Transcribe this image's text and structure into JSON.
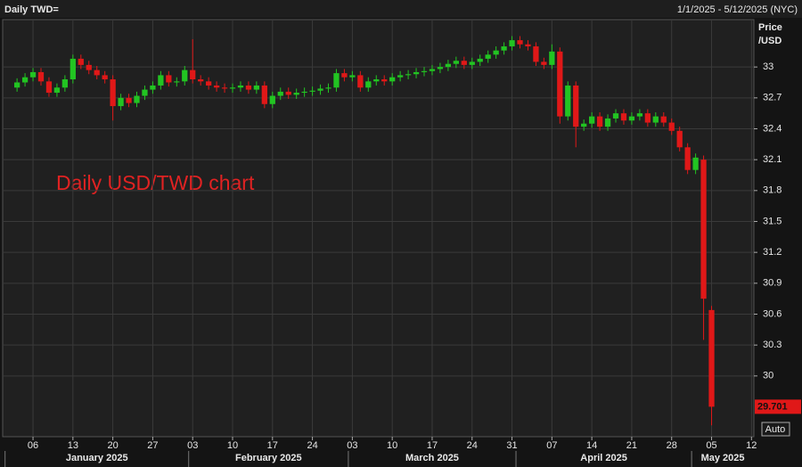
{
  "header": {
    "title": "Daily TWD=",
    "range": "1/1/2025 - 5/12/2025 (NYC)"
  },
  "controls": {
    "auto": "Auto"
  },
  "chart_data": {
    "type": "candlestick",
    "annotation": "Daily USD/TWD chart",
    "y_axis_label": [
      "Price",
      "/USD"
    ],
    "up_color": "#22c422",
    "down_color": "#e01818",
    "grid": true,
    "x": [
      "2025-01-02",
      "2025-01-03",
      "2025-01-06",
      "2025-01-07",
      "2025-01-08",
      "2025-01-09",
      "2025-01-10",
      "2025-01-13",
      "2025-01-14",
      "2025-01-15",
      "2025-01-16",
      "2025-01-17",
      "2025-01-20",
      "2025-01-21",
      "2025-01-22",
      "2025-01-23",
      "2025-01-24",
      "2025-01-27",
      "2025-01-28",
      "2025-01-29",
      "2025-01-30",
      "2025-01-31",
      "2025-02-03",
      "2025-02-04",
      "2025-02-05",
      "2025-02-06",
      "2025-02-07",
      "2025-02-10",
      "2025-02-11",
      "2025-02-12",
      "2025-02-13",
      "2025-02-14",
      "2025-02-17",
      "2025-02-18",
      "2025-02-19",
      "2025-02-20",
      "2025-02-21",
      "2025-02-24",
      "2025-02-25",
      "2025-02-26",
      "2025-02-27",
      "2025-02-28",
      "2025-03-03",
      "2025-03-04",
      "2025-03-05",
      "2025-03-06",
      "2025-03-07",
      "2025-03-10",
      "2025-03-11",
      "2025-03-12",
      "2025-03-13",
      "2025-03-14",
      "2025-03-17",
      "2025-03-18",
      "2025-03-19",
      "2025-03-20",
      "2025-03-21",
      "2025-03-24",
      "2025-03-25",
      "2025-03-26",
      "2025-03-27",
      "2025-03-28",
      "2025-03-31",
      "2025-04-01",
      "2025-04-02",
      "2025-04-03",
      "2025-04-04",
      "2025-04-07",
      "2025-04-08",
      "2025-04-09",
      "2025-04-10",
      "2025-04-11",
      "2025-04-14",
      "2025-04-15",
      "2025-04-16",
      "2025-04-17",
      "2025-04-18",
      "2025-04-21",
      "2025-04-22",
      "2025-04-23",
      "2025-04-24",
      "2025-04-25",
      "2025-04-28",
      "2025-04-29",
      "2025-04-30",
      "2025-05-01",
      "2025-05-02",
      "2025-05-05"
    ],
    "open": [
      32.8,
      32.85,
      32.9,
      32.95,
      32.86,
      32.75,
      32.8,
      32.88,
      33.08,
      33.02,
      32.97,
      32.92,
      32.88,
      32.62,
      32.7,
      32.65,
      32.72,
      32.78,
      32.82,
      32.92,
      32.85,
      32.86,
      32.97,
      32.88,
      32.86,
      32.82,
      32.8,
      32.79,
      32.8,
      32.82,
      32.78,
      32.82,
      32.64,
      32.72,
      32.76,
      32.73,
      32.75,
      32.76,
      32.77,
      32.79,
      32.8,
      32.94,
      32.9,
      32.92,
      32.8,
      32.86,
      32.88,
      32.86,
      32.9,
      32.92,
      32.93,
      32.95,
      32.96,
      32.98,
      33.0,
      33.03,
      33.06,
      33.02,
      33.05,
      33.08,
      33.12,
      33.16,
      33.2,
      33.26,
      33.22,
      33.2,
      33.05,
      33.02,
      33.15,
      32.52,
      32.82,
      32.42,
      32.45,
      32.52,
      32.42,
      32.5,
      32.55,
      32.48,
      32.52,
      32.55,
      32.46,
      32.52,
      32.46,
      32.38,
      32.22,
      32.0,
      32.1,
      30.64
    ],
    "high": [
      32.89,
      32.94,
      32.99,
      32.99,
      32.9,
      32.84,
      32.92,
      33.12,
      33.12,
      33.06,
      33.01,
      32.96,
      32.92,
      32.74,
      32.74,
      32.76,
      32.82,
      32.86,
      32.96,
      32.96,
      32.9,
      33.01,
      33.27,
      32.92,
      32.9,
      32.86,
      32.84,
      32.84,
      32.86,
      32.86,
      32.86,
      32.86,
      32.76,
      32.8,
      32.8,
      32.79,
      32.8,
      32.81,
      32.83,
      32.84,
      32.98,
      32.98,
      32.96,
      32.96,
      32.9,
      32.92,
      32.92,
      32.94,
      32.96,
      32.97,
      32.99,
      33.0,
      33.02,
      33.04,
      33.07,
      33.1,
      33.1,
      33.09,
      33.12,
      33.16,
      33.2,
      33.24,
      33.3,
      33.3,
      33.26,
      33.24,
      33.09,
      33.22,
      33.19,
      32.86,
      32.86,
      32.49,
      32.56,
      32.56,
      32.54,
      32.59,
      32.59,
      32.56,
      32.59,
      32.59,
      32.56,
      32.56,
      32.5,
      32.42,
      32.26,
      32.16,
      32.14,
      30.68
    ],
    "low": [
      32.76,
      32.81,
      32.86,
      32.82,
      32.71,
      32.71,
      32.76,
      32.84,
      32.98,
      32.93,
      32.88,
      32.84,
      32.48,
      32.58,
      32.61,
      32.61,
      32.68,
      32.74,
      32.78,
      32.81,
      32.81,
      32.82,
      32.84,
      32.82,
      32.78,
      32.76,
      32.75,
      32.75,
      32.76,
      32.74,
      32.74,
      32.6,
      32.6,
      32.68,
      32.69,
      32.69,
      32.71,
      32.72,
      32.73,
      32.75,
      32.76,
      32.86,
      32.86,
      32.76,
      32.76,
      32.82,
      32.82,
      32.82,
      32.86,
      32.88,
      32.89,
      32.91,
      32.92,
      32.94,
      32.96,
      32.99,
      32.98,
      32.98,
      33.01,
      33.04,
      33.08,
      33.12,
      33.16,
      33.18,
      33.16,
      33.01,
      32.98,
      32.98,
      32.45,
      32.48,
      32.22,
      32.38,
      32.41,
      32.38,
      32.38,
      32.46,
      32.44,
      32.44,
      32.48,
      32.42,
      32.42,
      32.42,
      32.34,
      32.18,
      31.96,
      31.96,
      30.35,
      29.52
    ],
    "close": [
      32.85,
      32.9,
      32.95,
      32.86,
      32.75,
      32.8,
      32.88,
      33.08,
      33.02,
      32.97,
      32.92,
      32.88,
      32.62,
      32.7,
      32.65,
      32.72,
      32.78,
      32.82,
      32.92,
      32.85,
      32.86,
      32.97,
      32.88,
      32.86,
      32.82,
      32.8,
      32.79,
      32.8,
      32.82,
      32.78,
      32.82,
      32.64,
      32.72,
      32.76,
      32.73,
      32.75,
      32.76,
      32.77,
      32.79,
      32.8,
      32.94,
      32.9,
      32.92,
      32.8,
      32.86,
      32.88,
      32.86,
      32.9,
      32.92,
      32.93,
      32.95,
      32.96,
      32.98,
      33.0,
      33.03,
      33.06,
      33.02,
      33.05,
      33.08,
      33.12,
      33.16,
      33.2,
      33.26,
      33.22,
      33.2,
      33.05,
      33.02,
      33.15,
      32.52,
      32.82,
      32.42,
      32.45,
      32.52,
      32.42,
      32.5,
      32.55,
      32.48,
      32.52,
      32.55,
      32.46,
      32.52,
      32.46,
      32.38,
      32.22,
      32.0,
      32.12,
      30.75,
      29.701
    ],
    "ylim": [
      29.41,
      33.46
    ],
    "yticks": [
      33,
      32.7,
      32.4,
      32.1,
      31.8,
      31.5,
      31.2,
      30.9,
      30.6,
      30.3,
      30
    ],
    "xlim": [
      "2025-01-01",
      "2025-05-12"
    ],
    "xticks": [
      {
        "value": "2025-01-06",
        "label": "06"
      },
      {
        "value": "2025-01-13",
        "label": "13"
      },
      {
        "value": "2025-01-20",
        "label": "20"
      },
      {
        "value": "2025-01-27",
        "label": "27"
      },
      {
        "value": "2025-02-03",
        "label": "03"
      },
      {
        "value": "2025-02-10",
        "label": "10"
      },
      {
        "value": "2025-02-17",
        "label": "17"
      },
      {
        "value": "2025-02-24",
        "label": "24"
      },
      {
        "value": "2025-03-03",
        "label": "03"
      },
      {
        "value": "2025-03-10",
        "label": "10"
      },
      {
        "value": "2025-03-17",
        "label": "17"
      },
      {
        "value": "2025-03-24",
        "label": "24"
      },
      {
        "value": "2025-03-31",
        "label": "31"
      },
      {
        "value": "2025-04-07",
        "label": "07"
      },
      {
        "value": "2025-04-14",
        "label": "14"
      },
      {
        "value": "2025-04-21",
        "label": "21"
      },
      {
        "value": "2025-04-28",
        "label": "28"
      },
      {
        "value": "2025-05-05",
        "label": "05"
      },
      {
        "value": "2025-05-12",
        "label": "12"
      }
    ],
    "months": [
      {
        "value": "2025-01",
        "label": "January 2025"
      },
      {
        "value": "2025-02",
        "label": "February 2025"
      },
      {
        "value": "2025-03",
        "label": "March 2025"
      },
      {
        "value": "2025-04",
        "label": "April 2025"
      },
      {
        "value": "2025-05",
        "label": "May 2025"
      }
    ]
  }
}
